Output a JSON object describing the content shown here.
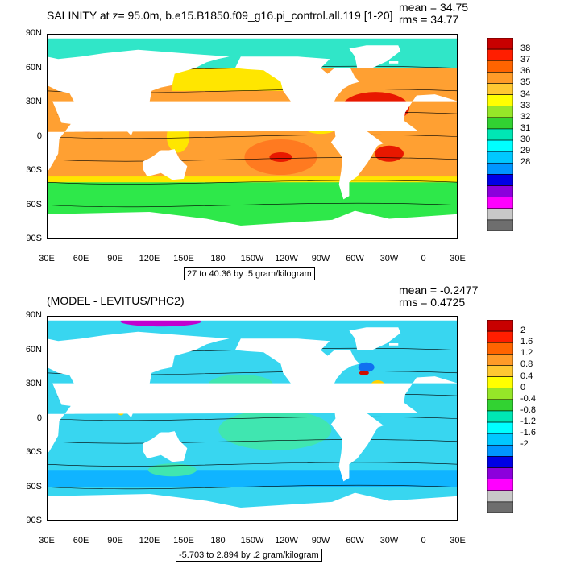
{
  "chart_data": [
    {
      "type": "heatmap",
      "title": "SALINITY at z=  95.0m, b.e15.B1850.f09_g16.pi_control.all.119 [1-20]",
      "stats": {
        "mean": "mean = 34.75",
        "rms": "rms = 34.77"
      },
      "info": "27 to 40.36 by .5 gram/kilogram",
      "y_ticks": [
        "90N",
        "60N",
        "30N",
        "0",
        "30S",
        "60S",
        "90S"
      ],
      "x_ticks": [
        "30E",
        "60E",
        "90E",
        "120E",
        "150E",
        "180",
        "150W",
        "120W",
        "90W",
        "60W",
        "30W",
        "0",
        "30E"
      ],
      "xlim": [
        30,
        390
      ],
      "ylim": [
        -90,
        90
      ],
      "colorbar": {
        "labels": [
          "38",
          "37",
          "36",
          "35",
          "34",
          "33",
          "32",
          "31",
          "30",
          "29",
          "28"
        ],
        "colors": [
          "#c80000",
          "#ff1e00",
          "#ff6400",
          "#ff9b28",
          "#ffc832",
          "#ffff00",
          "#96e628",
          "#32d232",
          "#00e6b4",
          "#00ffff",
          "#00c8ff",
          "#0096ff",
          "#0000e6",
          "#8c00dc",
          "#ff00ff",
          "#c8c8c8",
          "#6e6e6e"
        ]
      },
      "field_colors": {
        "ocean": "#ffa032",
        "warm": "#ff7a20",
        "hot": "#e81800",
        "fresh": "#ffe600",
        "polar": "#2ee84a",
        "arctic": "#30e6c8",
        "land": "#ffffff"
      }
    },
    {
      "type": "heatmap",
      "title": "(MODEL - LEVITUS/PHC2)",
      "stats": {
        "mean": "mean = -0.2477",
        "rms": "rms = 0.4725"
      },
      "info": "-5.703 to 2.894 by .2 gram/kilogram",
      "y_ticks": [
        "90N",
        "60N",
        "30N",
        "0",
        "30S",
        "60S",
        "90S"
      ],
      "x_ticks": [
        "30E",
        "60E",
        "90E",
        "120E",
        "150E",
        "180",
        "150W",
        "120W",
        "90W",
        "60W",
        "30W",
        "0",
        "30E"
      ],
      "xlim": [
        30,
        390
      ],
      "ylim": [
        -90,
        90
      ],
      "colorbar": {
        "labels": [
          "2",
          "1.6",
          "1.2",
          "0.8",
          "0.4",
          "0",
          "-0.4",
          "-0.8",
          "-1.2",
          "-1.6",
          "-2"
        ],
        "colors": [
          "#c80000",
          "#ff1e00",
          "#ff6400",
          "#ff9b28",
          "#ffc832",
          "#ffff00",
          "#96e628",
          "#32d232",
          "#00e6b4",
          "#00ffff",
          "#00c8ff",
          "#0096ff",
          "#0000e6",
          "#8c00dc",
          "#ff00ff",
          "#c8c8c8",
          "#6e6e6e"
        ]
      },
      "field_colors": {
        "ocean": "#38d6f0",
        "negative": "#10b4ff",
        "positive": "#40e6b0",
        "deep": "#1070f0",
        "land": "#ffffff"
      }
    }
  ]
}
